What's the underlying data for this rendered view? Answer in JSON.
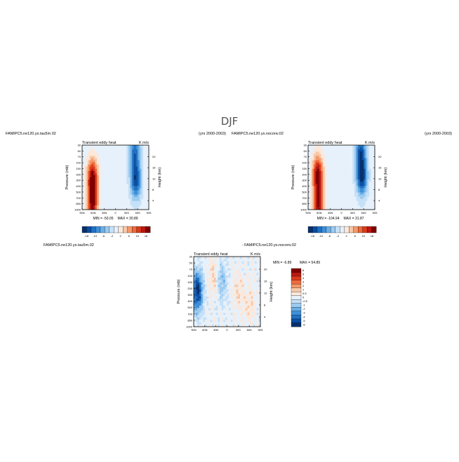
{
  "figure_title": "DJF",
  "colormap": {
    "diverging": [
      "#08306b",
      "#0b4ea2",
      "#2171c1",
      "#3f8fd8",
      "#6aaee6",
      "#9ccbf0",
      "#c6e0f7",
      "#e6f1fb",
      "#fbe8dc",
      "#f8c8a8",
      "#f49a6a",
      "#ee6a3c",
      "#dc3b1c",
      "#b81912",
      "#800000"
    ]
  },
  "chart_data": [
    {
      "type": "heatmap",
      "case_label": "FAMIPC5.ne120.ys.tau5m.02",
      "years": "(yrs 2000-2003)",
      "title": "Transient eddy heat",
      "units": "K m/s",
      "ylabel": "Pressure (mb)",
      "ylabel_right": "Height (km)",
      "x_ticks": [
        "90N",
        "60N",
        "30N",
        "0",
        "30S",
        "60S",
        "90S"
      ],
      "y_ticks": [
        "30",
        "50",
        "70",
        "100",
        "150",
        "200",
        "300",
        "400",
        "500",
        "700",
        "850",
        "1000"
      ],
      "y_ticks_right": [
        "20",
        "16",
        "12",
        "8",
        "4"
      ],
      "min_label": "MIN = -50.05",
      "max_label": "MAX = 30.89",
      "colorbar_labels": [
        "-18",
        "-10",
        "-6",
        "-2",
        "2",
        "6",
        "10",
        "18"
      ],
      "features": [
        {
          "lat": 62,
          "logp_center": 0.5,
          "sign": 1,
          "amp": 1.0
        },
        {
          "lat": 62,
          "logp_center": 0.92,
          "sign": 1,
          "amp": 0.95
        },
        {
          "lat": -55,
          "logp_center": 0.55,
          "sign": -1,
          "amp": 0.9
        },
        {
          "lat": -52,
          "logp_center": 0.1,
          "sign": -1,
          "amp": 0.7
        }
      ]
    },
    {
      "type": "heatmap",
      "case_label": "FAMIPC5.ne120.ys.noconv.02",
      "years": "(yrs 2000-2003)",
      "title": "Transient eddy heat",
      "units": "K m/s",
      "ylabel": "Pressure (mb)",
      "ylabel_right": "Height (km)",
      "x_ticks": [
        "90N",
        "60N",
        "30N",
        "0",
        "30S",
        "60S",
        "90S"
      ],
      "y_ticks": [
        "30",
        "50",
        "70",
        "100",
        "150",
        "200",
        "300",
        "400",
        "500",
        "700",
        "850",
        "1000"
      ],
      "y_ticks_right": [
        "20",
        "16",
        "12",
        "8",
        "4"
      ],
      "min_label": "MIN = -104.94",
      "max_label": "MAX = 31.87",
      "colorbar_labels": [
        "-18",
        "-10",
        "-6",
        "-2",
        "2",
        "6",
        "10",
        "18"
      ],
      "features": [
        {
          "lat": 64,
          "logp_center": 0.45,
          "sign": 1,
          "amp": 1.0
        },
        {
          "lat": 62,
          "logp_center": 0.92,
          "sign": 1,
          "amp": 0.95
        },
        {
          "lat": -55,
          "logp_center": 0.5,
          "sign": -1,
          "amp": 1.0
        },
        {
          "lat": -52,
          "logp_center": 0.1,
          "sign": -1,
          "amp": 0.8
        }
      ]
    },
    {
      "type": "heatmap",
      "diff_title": "FAMIPC5.ne120.ys.tau5m.02",
      "case_label": "- FAMIPC5.ne120.ys.noconv.02",
      "title": "Transient eddy heat",
      "units": "K m/s",
      "ylabel": "Pressure (mb)",
      "ylabel_right": "Height (km)",
      "x_ticks": [
        "90N",
        "60N",
        "30N",
        "0",
        "30S",
        "60S",
        "90S"
      ],
      "y_ticks": [
        "30",
        "50",
        "70",
        "100",
        "150",
        "200",
        "300",
        "400",
        "500",
        "700",
        "850",
        "1000"
      ],
      "y_ticks_right": [
        "20",
        "16",
        "12",
        "8",
        "4"
      ],
      "min_label": "MIN = -6.89",
      "max_label": "MAX = 54.89",
      "colorbar_labels": [
        "6",
        "5",
        "4",
        "3",
        "2",
        "1",
        "0.5",
        "0",
        "-0.5",
        "-1",
        "-2",
        "-3",
        "-4",
        "-5",
        "-6"
      ],
      "features": [
        {
          "lat": 80,
          "logp_center": 0.5,
          "sign": -1,
          "amp": 1.0
        },
        {
          "lat": 35,
          "logp_center": 0.3,
          "sign": 1,
          "amp": 0.25
        },
        {
          "lat": -30,
          "logp_center": 0.5,
          "sign": 1,
          "amp": 0.2
        },
        {
          "lat": 15,
          "logp_center": 0.35,
          "sign": -1,
          "amp": 0.35
        },
        {
          "lat": -60,
          "logp_center": 0.7,
          "sign": 1,
          "amp": 0.2
        }
      ]
    }
  ]
}
